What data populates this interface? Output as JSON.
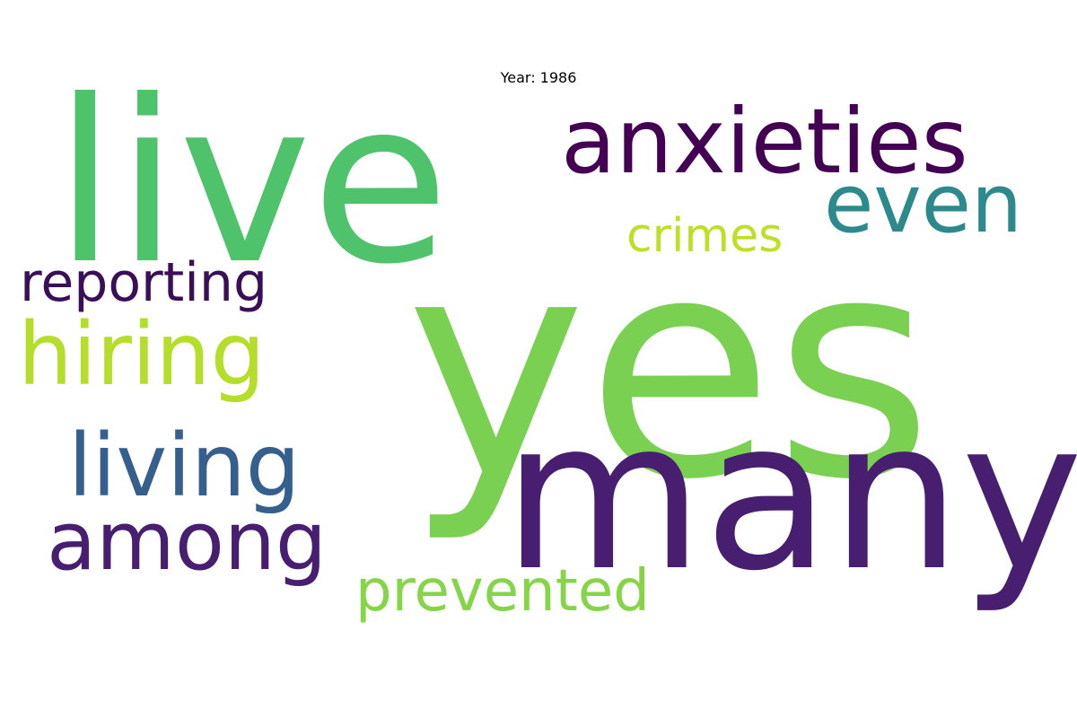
{
  "title": "Year: 1986",
  "words": [
    {
      "text": "yes",
      "color": "#7ad151"
    },
    {
      "text": "many",
      "color": "#481f70"
    },
    {
      "text": "live",
      "color": "#4ec36b"
    },
    {
      "text": "anxieties",
      "color": "#440154"
    },
    {
      "text": "even",
      "color": "#2c8a8c"
    },
    {
      "text": "hiring",
      "color": "#b5de2b"
    },
    {
      "text": "living",
      "color": "#35608d"
    },
    {
      "text": "among",
      "color": "#481f70"
    },
    {
      "text": "reporting",
      "color": "#3b0f58"
    },
    {
      "text": "crimes",
      "color": "#bddf26"
    },
    {
      "text": "prevented",
      "color": "#86d549"
    }
  ]
}
